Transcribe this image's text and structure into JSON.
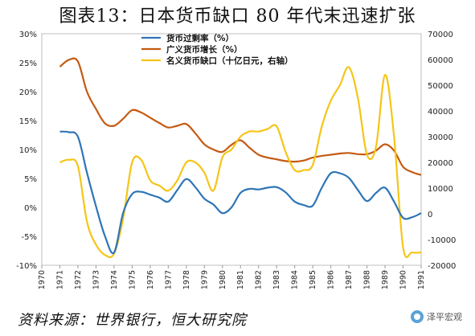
{
  "title": "图表13：日本货币缺口 80 年代末迅速扩张",
  "source": "资料来源：世界银行，恒大研究院",
  "logo_text": "泽平宏观",
  "chart_data": {
    "type": "line",
    "x": [
      "1970",
      "1971",
      "1972",
      "1973",
      "1974",
      "1975",
      "1976",
      "1977",
      "1978",
      "1979",
      "1980",
      "1981",
      "1982",
      "1983",
      "1984",
      "1985",
      "1986",
      "1987",
      "1988",
      "1989",
      "1990",
      "1991"
    ],
    "y_left_ticks": [
      "30%",
      "25%",
      "20%",
      "15%",
      "10%",
      "5%",
      "0%",
      "-5%",
      "-10%"
    ],
    "y_right_ticks": [
      "70000",
      "60000",
      "50000",
      "40000",
      "30000",
      "20000",
      "10000",
      "0",
      "-10000",
      "-20000"
    ],
    "ylim_left": [
      -10,
      30
    ],
    "ylim_right": [
      -20000,
      70000
    ],
    "legend_position": "top-center",
    "series": [
      {
        "name": "货币过剩率（%）",
        "axis": "left",
        "color": "#2e75b6",
        "x": [
          1971.0,
          1971.5,
          1972.0,
          1972.5,
          1973.0,
          1973.5,
          1974.0,
          1974.5,
          1975.0,
          1975.5,
          1976.0,
          1976.5,
          1977.0,
          1977.5,
          1978.0,
          1978.5,
          1979.0,
          1979.5,
          1980.0,
          1980.5,
          1981.0,
          1981.5,
          1982.0,
          1982.5,
          1983.0,
          1983.5,
          1984.0,
          1984.5,
          1985.0,
          1985.5,
          1986.0,
          1986.5,
          1987.0,
          1987.5,
          1988.0,
          1988.5,
          1989.0,
          1989.5,
          1990.0,
          1990.5,
          1991.0
        ],
        "values": [
          13.1,
          13.0,
          12.2,
          6.0,
          0.2,
          -5.0,
          -7.8,
          -1.0,
          2.3,
          2.7,
          2.2,
          1.7,
          1.0,
          3.0,
          4.9,
          3.5,
          1.5,
          0.5,
          -1.0,
          0.0,
          2.5,
          3.2,
          3.1,
          3.4,
          3.5,
          2.6,
          1.0,
          0.4,
          0.3,
          3.4,
          5.9,
          5.9,
          5.1,
          3.0,
          1.1,
          2.5,
          3.4,
          1.0,
          -1.8,
          -1.7,
          -1.0
        ]
      },
      {
        "name": "广义货币增长（%）",
        "axis": "left",
        "color": "#c55a11",
        "x": [
          1971.0,
          1971.5,
          1972.0,
          1972.5,
          1973.0,
          1973.5,
          1974.0,
          1974.5,
          1975.0,
          1975.5,
          1976.0,
          1976.5,
          1977.0,
          1977.5,
          1978.0,
          1978.5,
          1979.0,
          1979.5,
          1980.0,
          1980.5,
          1981.0,
          1981.5,
          1982.0,
          1982.5,
          1983.0,
          1983.5,
          1984.0,
          1984.5,
          1985.0,
          1985.5,
          1986.0,
          1986.5,
          1987.0,
          1987.5,
          1988.0,
          1988.5,
          1989.0,
          1989.5,
          1990.0,
          1990.5,
          1991.0
        ],
        "values": [
          24.3,
          25.5,
          25.2,
          20.0,
          17.0,
          14.5,
          14.1,
          15.3,
          16.8,
          16.4,
          15.5,
          14.6,
          13.8,
          14.1,
          14.4,
          12.8,
          10.9,
          10.0,
          9.6,
          10.8,
          11.6,
          10.3,
          9.1,
          8.6,
          8.3,
          8.0,
          7.9,
          8.1,
          8.6,
          8.9,
          9.1,
          9.3,
          9.4,
          9.2,
          9.2,
          9.8,
          10.9,
          9.8,
          7.0,
          6.1,
          5.6
        ]
      },
      {
        "name": "名义货币缺口（十亿日元，右轴）",
        "axis": "right",
        "color": "#f5c518",
        "x": [
          1971.0,
          1971.5,
          1972.0,
          1972.5,
          1973.0,
          1973.5,
          1974.0,
          1974.5,
          1975.0,
          1975.5,
          1976.0,
          1976.5,
          1977.0,
          1977.5,
          1978.0,
          1978.5,
          1979.0,
          1979.5,
          1980.0,
          1980.5,
          1981.0,
          1981.5,
          1982.0,
          1982.5,
          1983.0,
          1983.5,
          1984.0,
          1984.5,
          1985.0,
          1985.5,
          1986.0,
          1986.5,
          1987.0,
          1987.5,
          1988.0,
          1988.5,
          1989.0,
          1989.5,
          1990.0,
          1990.5,
          1991.0
        ],
        "values": [
          20000,
          21000,
          18500,
          -3000,
          -12000,
          -16000,
          -15500,
          -2000,
          20000,
          21000,
          13000,
          11000,
          9000,
          13000,
          20000,
          20000,
          16000,
          9000,
          22000,
          25000,
          30000,
          32000,
          32000,
          33000,
          34000,
          24000,
          17000,
          17000,
          19000,
          34000,
          44000,
          50000,
          57000,
          45000,
          23000,
          26000,
          54000,
          30000,
          -13000,
          -15000,
          -15000
        ]
      }
    ]
  }
}
